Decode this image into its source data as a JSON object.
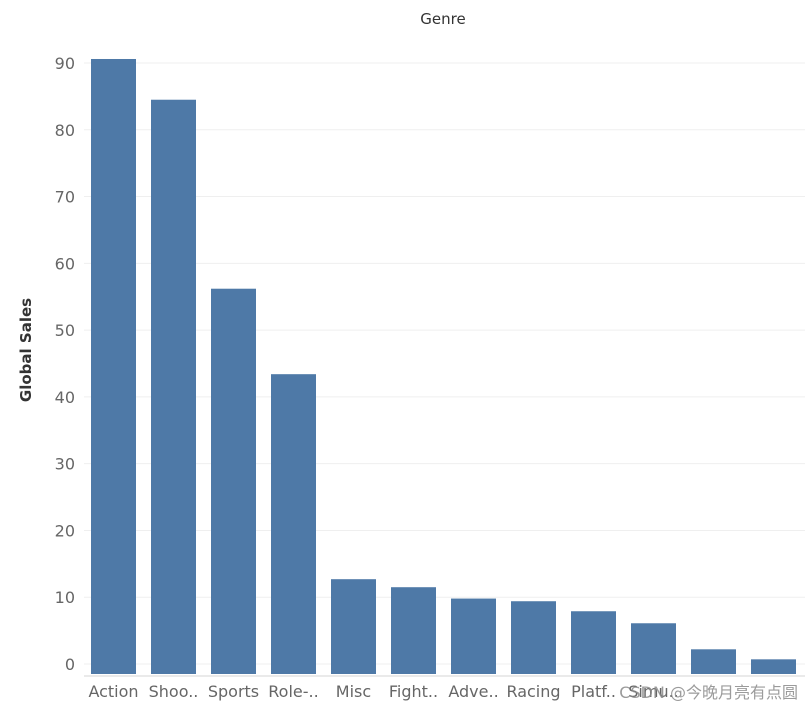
{
  "chart_data": {
    "type": "bar",
    "title": "Genre",
    "xlabel": "",
    "ylabel": "Global Sales",
    "categories": [
      "Action",
      "Shoo..",
      "Sports",
      "Role-..",
      "Misc",
      "Fight..",
      "Adve..",
      "Racing",
      "Platf..",
      "Simu..",
      "",
      ""
    ],
    "values": [
      90.6,
      84.5,
      56.2,
      43.4,
      12.7,
      11.5,
      9.8,
      9.4,
      7.9,
      6.1,
      2.2,
      0.7
    ],
    "yticks": [
      0,
      10,
      20,
      30,
      40,
      50,
      60,
      70,
      80,
      90
    ],
    "ylim": [
      -1.5,
      95
    ],
    "grid": true,
    "bar_color": "#4e79a7"
  },
  "watermark": "CSDN @今晚月亮有点圆"
}
